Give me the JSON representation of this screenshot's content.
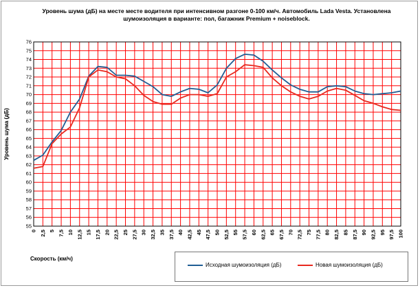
{
  "chart_data": {
    "type": "line",
    "title_line1": "Уровень шума (дБ) на месте месте водителя при интенсивном разгоне 0-100 км/ч. Автомобиль Lada Vesta.  Установлена",
    "title_line2": "шумоизоляция в варианте: пол, багажник Premium + noiseblock.",
    "xlabel": "Скорость (км/ч)",
    "ylabel": "Уровень шума (дБ)",
    "xlim": [
      0,
      100
    ],
    "ylim": [
      55,
      76
    ],
    "x_ticks": [
      "0",
      "2,5",
      "5",
      "7,5",
      "10",
      "12,5",
      "15",
      "17,5",
      "20",
      "22,5",
      "25",
      "27,5",
      "30",
      "32,5",
      "35",
      "37,5",
      "40",
      "42,5",
      "45",
      "47,5",
      "50",
      "52,5",
      "55",
      "57,5",
      "60",
      "62,5",
      "65",
      "67,5",
      "70",
      "72,5",
      "75",
      "77,5",
      "80",
      "82,5",
      "85",
      "87,5",
      "90",
      "92,5",
      "95",
      "97,5",
      "100"
    ],
    "y_ticks": [
      "55",
      "56",
      "57",
      "58",
      "59",
      "60",
      "61",
      "62",
      "63",
      "64",
      "65",
      "66",
      "67",
      "68",
      "69",
      "70",
      "71",
      "72",
      "73",
      "74",
      "75",
      "76"
    ],
    "x": [
      0,
      2.5,
      5,
      7.5,
      10,
      12.5,
      15,
      17.5,
      20,
      22.5,
      25,
      27.5,
      30,
      32.5,
      35,
      37.5,
      40,
      42.5,
      45,
      47.5,
      50,
      52.5,
      55,
      57.5,
      60,
      62.5,
      65,
      67.5,
      70,
      72.5,
      75,
      77.5,
      80,
      82.5,
      85,
      87.5,
      90,
      92.5,
      95,
      97.5,
      100
    ],
    "series": [
      {
        "name": "Исходная шумоизоляция (дБ)",
        "color": "#1f5d94",
        "values": [
          62.5,
          63.1,
          64.6,
          65.9,
          68.0,
          69.5,
          72.1,
          73.2,
          73.1,
          72.2,
          72.2,
          72.1,
          71.5,
          70.9,
          70.0,
          69.8,
          70.3,
          70.7,
          70.6,
          70.2,
          71.1,
          73.0,
          74.1,
          74.6,
          74.5,
          73.8,
          72.8,
          71.9,
          71.1,
          70.6,
          70.3,
          70.3,
          70.9,
          71.0,
          70.9,
          70.4,
          70.1,
          70.0,
          70.1,
          70.2,
          70.4
        ]
      },
      {
        "name": "Новая шумоизоляция (дБ)",
        "color": "#e8281e",
        "values": [
          61.6,
          61.8,
          64.4,
          65.5,
          66.3,
          68.5,
          72.0,
          72.8,
          72.6,
          72.0,
          71.8,
          71.0,
          69.9,
          69.2,
          68.9,
          68.9,
          69.6,
          70.0,
          70.0,
          69.8,
          70.1,
          72.0,
          72.6,
          73.4,
          73.3,
          73.1,
          71.9,
          71.0,
          70.3,
          69.8,
          69.5,
          69.8,
          70.4,
          70.7,
          70.5,
          69.9,
          69.3,
          69.0,
          68.6,
          68.3,
          68.2
        ]
      }
    ]
  },
  "legend": {
    "entries": [
      {
        "label": "Исходная шумоизоляция (дБ)",
        "color": "#1f5d94"
      },
      {
        "label": "Новая шумоизоляция (дБ)",
        "color": "#e8281e"
      }
    ]
  }
}
